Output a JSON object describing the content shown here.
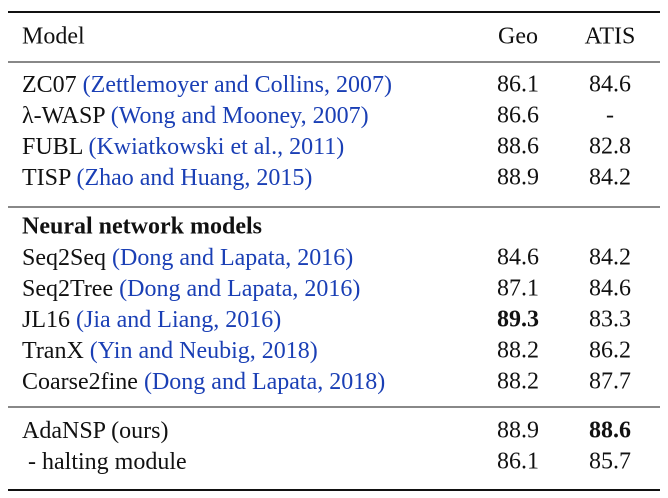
{
  "table": {
    "header": [
      "Model",
      "Geo",
      "ATIS"
    ],
    "groups": [
      {
        "rows": [
          {
            "model": "ZC07",
            "cite": "(Zettlemoyer and Collins, 2007)",
            "geo": "86.1",
            "atis": "84.6"
          },
          {
            "model": "λ-WASP",
            "cite": "(Wong and Mooney, 2007)",
            "geo": "86.6",
            "atis": "-"
          },
          {
            "model": "FUBL",
            "cite": "(Kwiatkowski et al., 2011)",
            "geo": "88.6",
            "atis": "82.8"
          },
          {
            "model": "TISP",
            "cite": "(Zhao and Huang, 2015)",
            "geo": "88.9",
            "atis": "84.2"
          }
        ]
      },
      {
        "title": "Neural network models",
        "rows": [
          {
            "model": "Seq2Seq",
            "cite": "(Dong and Lapata, 2016)",
            "geo": "84.6",
            "atis": "84.2"
          },
          {
            "model": "Seq2Tree",
            "cite": "(Dong and Lapata, 2016)",
            "geo": "87.1",
            "atis": "84.6"
          },
          {
            "model": "JL16",
            "cite": "(Jia and Liang, 2016)",
            "geo": "89.3",
            "atis": "83.3",
            "bold": "geo"
          },
          {
            "model": "TranX",
            "cite": "(Yin and Neubig, 2018)",
            "geo": "88.2",
            "atis": "86.2"
          },
          {
            "model": "Coarse2fine",
            "cite": "(Dong and Lapata, 2018)",
            "geo": "88.2",
            "atis": "87.7"
          }
        ]
      },
      {
        "rows": [
          {
            "model": "AdaNSP (ours)",
            "geo": "88.9",
            "atis": "88.6",
            "bold": "atis"
          },
          {
            "model": " - halting module",
            "geo": "86.1",
            "atis": "85.7"
          }
        ]
      }
    ]
  }
}
